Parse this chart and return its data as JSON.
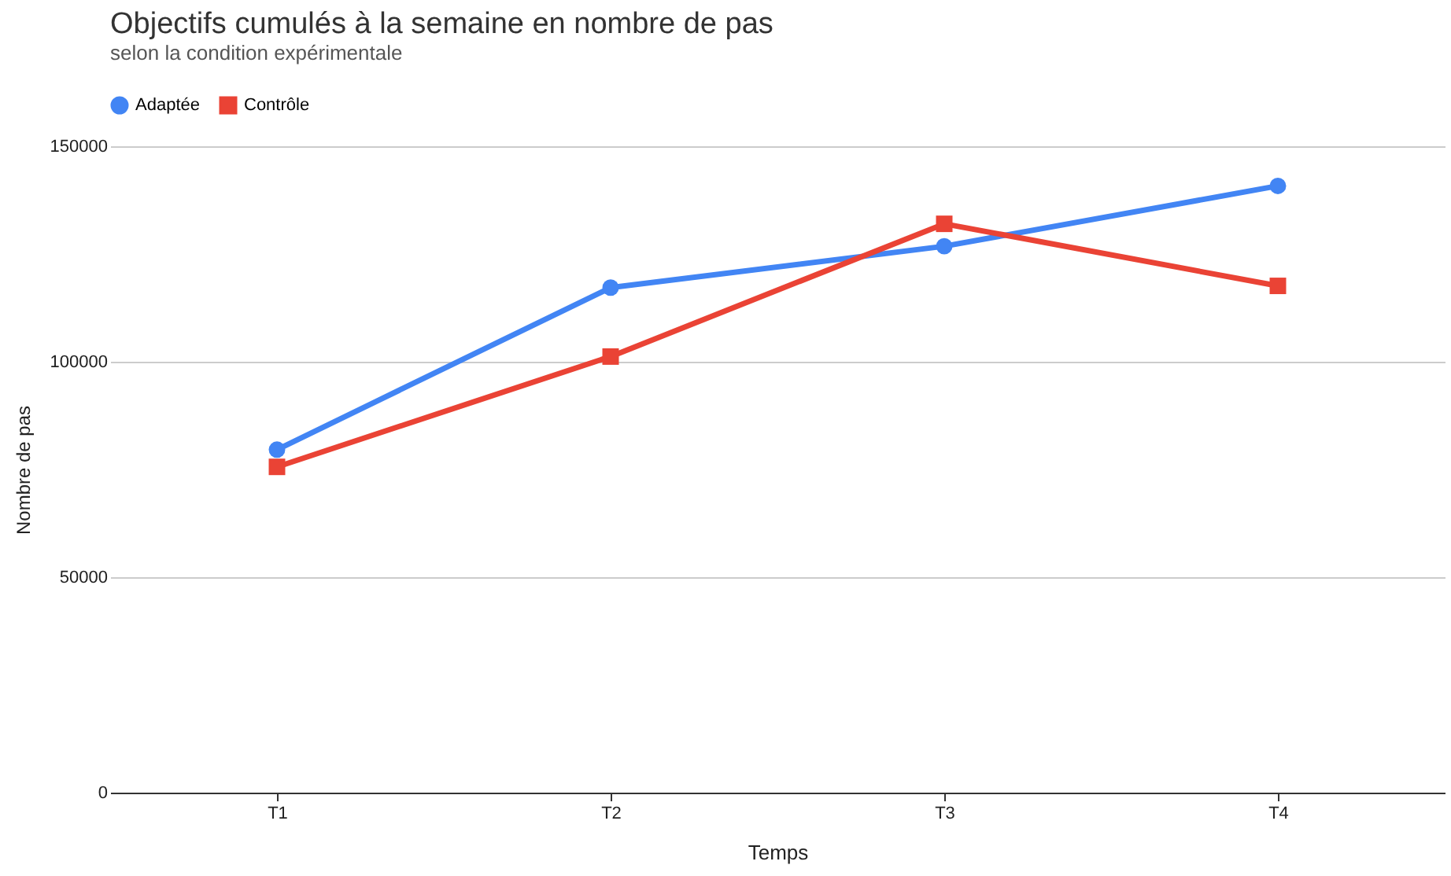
{
  "chart_data": {
    "type": "line",
    "title": "Objectifs cumulés à la semaine en nombre de pas",
    "subtitle": "selon la condition expérimentale",
    "xlabel": "Temps",
    "ylabel": "Nombre de pas",
    "categories": [
      "T1",
      "T2",
      "T3",
      "T4"
    ],
    "series": [
      {
        "name": "Adaptée",
        "color": "#4285f4",
        "marker": "circle",
        "values": [
          79600,
          117200,
          126800,
          140800
        ]
      },
      {
        "name": "Contrôle",
        "color": "#ea4335",
        "marker": "square",
        "values": [
          75600,
          101200,
          132000,
          117600
        ]
      }
    ],
    "ylim": [
      0,
      150000
    ],
    "yticks": [
      0,
      50000,
      100000,
      150000
    ],
    "grid": "y",
    "legend": "top",
    "line_style": "solid"
  }
}
